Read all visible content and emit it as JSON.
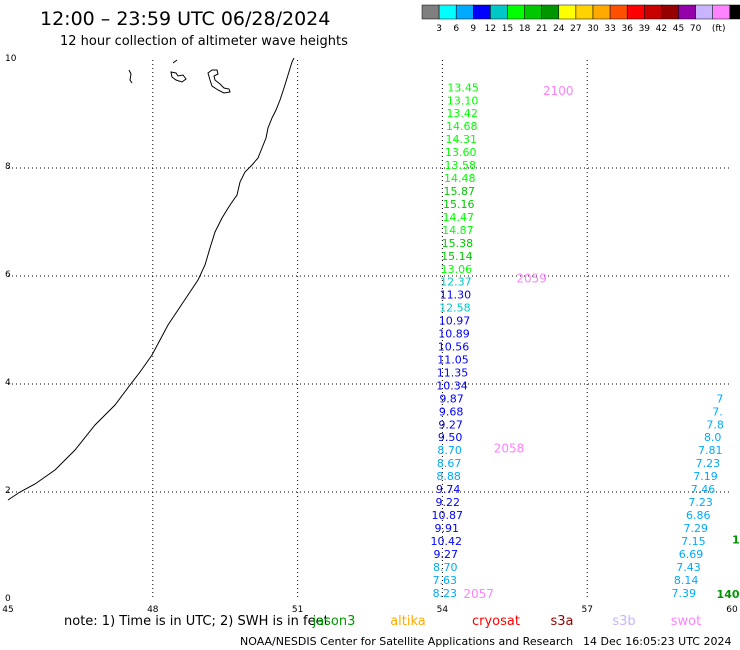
{
  "header": {
    "title": "12:00 – 23:59 UTC 06/28/2024",
    "subtitle": "12 hour collection of altimeter wave heights"
  },
  "colorbar": {
    "colors": [
      "#7f7f7f",
      "#00ffff",
      "#00aaff",
      "#0000ff",
      "#00c8c8",
      "#00ff00",
      "#00c800",
      "#009600",
      "#ffff00",
      "#ffd200",
      "#ffaa00",
      "#ff5000",
      "#ff0000",
      "#c80000",
      "#960000",
      "#9600aa",
      "#c8b4ff",
      "#ff82ff",
      "#000000"
    ],
    "labels": [
      "3",
      "6",
      "9",
      "12",
      "15",
      "18",
      "21",
      "24",
      "27",
      "30",
      "33",
      "36",
      "39",
      "42",
      "45",
      "70"
    ],
    "unit": "(ft)"
  },
  "chart_data": {
    "type": "scatter",
    "title": "12:00 – 23:59 UTC 06/28/2024",
    "subtitle": "12 hour collection of altimeter wave heights",
    "x_range": [
      45,
      60
    ],
    "y_range": [
      0,
      10
    ],
    "x_ticks": [
      "45",
      "48",
      "51",
      "54",
      "57",
      "60"
    ],
    "y_ticks": [
      "0",
      "2",
      "4",
      "6",
      "8",
      "10"
    ],
    "grid": true,
    "unit": "ft",
    "track_main": [
      {
        "x": 54.05,
        "y": 0.06,
        "v": "8.23",
        "c": "#00aaff"
      },
      {
        "x": 54.05,
        "y": 0.3,
        "v": "7.63",
        "c": "#00aaff"
      },
      {
        "x": 54.06,
        "y": 0.54,
        "v": "8.70",
        "c": "#00aaff"
      },
      {
        "x": 54.07,
        "y": 0.78,
        "v": "9.27",
        "c": "#0000ff"
      },
      {
        "x": 54.08,
        "y": 1.02,
        "v": "10.42",
        "c": "#0000ff"
      },
      {
        "x": 54.09,
        "y": 1.26,
        "v": "9.91",
        "c": "#0000ff"
      },
      {
        "x": 54.1,
        "y": 1.5,
        "v": "10.87",
        "c": "#0000ff"
      },
      {
        "x": 54.11,
        "y": 1.74,
        "v": "9.22",
        "c": "#0000ff"
      },
      {
        "x": 54.12,
        "y": 1.98,
        "v": "9.74",
        "c": "#0000ff"
      },
      {
        "x": 54.13,
        "y": 2.22,
        "v": "8.88",
        "c": "#00aaff"
      },
      {
        "x": 54.14,
        "y": 2.46,
        "v": "8.67",
        "c": "#00aaff"
      },
      {
        "x": 54.15,
        "y": 2.7,
        "v": "8.70",
        "c": "#00aaff"
      },
      {
        "x": 54.16,
        "y": 2.94,
        "v": "9.50",
        "c": "#0000ff"
      },
      {
        "x": 54.17,
        "y": 3.18,
        "v": "9.27",
        "c": "#0000ff"
      },
      {
        "x": 54.18,
        "y": 3.42,
        "v": "9.68",
        "c": "#0000ff"
      },
      {
        "x": 54.19,
        "y": 3.66,
        "v": "9.87",
        "c": "#0000ff"
      },
      {
        "x": 54.2,
        "y": 3.9,
        "v": "10.34",
        "c": "#0000ff"
      },
      {
        "x": 54.21,
        "y": 4.14,
        "v": "11.35",
        "c": "#0000ff"
      },
      {
        "x": 54.22,
        "y": 4.38,
        "v": "11.05",
        "c": "#0000ff"
      },
      {
        "x": 54.23,
        "y": 4.62,
        "v": "10.56",
        "c": "#0000ff"
      },
      {
        "x": 54.24,
        "y": 4.86,
        "v": "10.89",
        "c": "#0000ff"
      },
      {
        "x": 54.25,
        "y": 5.1,
        "v": "10.97",
        "c": "#0000ff"
      },
      {
        "x": 54.26,
        "y": 5.34,
        "v": "12.58",
        "c": "#00c8c8"
      },
      {
        "x": 54.27,
        "y": 5.58,
        "v": "11.30",
        "c": "#0000ff"
      },
      {
        "x": 54.28,
        "y": 5.82,
        "v": "12.37",
        "c": "#00c8c8"
      },
      {
        "x": 54.29,
        "y": 6.06,
        "v": "13.06",
        "c": "#00ff00"
      },
      {
        "x": 54.3,
        "y": 6.3,
        "v": "15.14",
        "c": "#00c800"
      },
      {
        "x": 54.31,
        "y": 6.54,
        "v": "15.38",
        "c": "#00c800"
      },
      {
        "x": 54.32,
        "y": 6.78,
        "v": "14.87",
        "c": "#00ff00"
      },
      {
        "x": 54.33,
        "y": 7.02,
        "v": "14.47",
        "c": "#00ff00"
      },
      {
        "x": 54.34,
        "y": 7.26,
        "v": "15.16",
        "c": "#00c800"
      },
      {
        "x": 54.35,
        "y": 7.5,
        "v": "15.87",
        "c": "#00c800"
      },
      {
        "x": 54.36,
        "y": 7.74,
        "v": "14.48",
        "c": "#00ff00"
      },
      {
        "x": 54.37,
        "y": 7.98,
        "v": "13.58",
        "c": "#00ff00"
      },
      {
        "x": 54.38,
        "y": 8.22,
        "v": "13.60",
        "c": "#00ff00"
      },
      {
        "x": 54.39,
        "y": 8.46,
        "v": "14.31",
        "c": "#00ff00"
      },
      {
        "x": 54.4,
        "y": 8.7,
        "v": "14.68",
        "c": "#00ff00"
      },
      {
        "x": 54.41,
        "y": 8.94,
        "v": "13.42",
        "c": "#00ff00"
      },
      {
        "x": 54.42,
        "y": 9.18,
        "v": "13.10",
        "c": "#00ff00"
      },
      {
        "x": 54.43,
        "y": 9.42,
        "v": "13.45",
        "c": "#00ff00"
      }
    ],
    "track_right": [
      {
        "x": 59.0,
        "y": 0.06,
        "v": "7.39",
        "c": "#00aaff"
      },
      {
        "x": 59.05,
        "y": 0.3,
        "v": "8.14",
        "c": "#00aaff"
      },
      {
        "x": 59.1,
        "y": 0.54,
        "v": "7.43",
        "c": "#00aaff"
      },
      {
        "x": 59.15,
        "y": 0.78,
        "v": "6.69",
        "c": "#00aaff"
      },
      {
        "x": 59.2,
        "y": 1.02,
        "v": "7.15",
        "c": "#00aaff"
      },
      {
        "x": 59.25,
        "y": 1.26,
        "v": "7.29",
        "c": "#00aaff"
      },
      {
        "x": 59.3,
        "y": 1.5,
        "v": "6.86",
        "c": "#00aaff"
      },
      {
        "x": 59.35,
        "y": 1.74,
        "v": "7.23",
        "c": "#00aaff"
      },
      {
        "x": 59.4,
        "y": 1.98,
        "v": "7.46",
        "c": "#00aaff"
      },
      {
        "x": 59.45,
        "y": 2.22,
        "v": "7.19",
        "c": "#00aaff"
      },
      {
        "x": 59.5,
        "y": 2.46,
        "v": "7.23",
        "c": "#00aaff"
      },
      {
        "x": 59.55,
        "y": 2.7,
        "v": "7.81",
        "c": "#00aaff"
      },
      {
        "x": 59.6,
        "y": 2.94,
        "v": "8.0",
        "c": "#00aaff"
      },
      {
        "x": 59.65,
        "y": 3.18,
        "v": "7.8",
        "c": "#00aaff"
      },
      {
        "x": 59.7,
        "y": 3.42,
        "v": "7.",
        "c": "#00aaff"
      },
      {
        "x": 59.75,
        "y": 3.66,
        "v": "7",
        "c": "#00aaff"
      }
    ],
    "time_labels": [
      {
        "x": 54.75,
        "y": 0.04,
        "t": "2057"
      },
      {
        "x": 55.38,
        "y": 2.73,
        "t": "2058"
      },
      {
        "x": 55.85,
        "y": 5.88,
        "t": "2059"
      },
      {
        "x": 56.4,
        "y": 9.35,
        "t": "2100"
      }
    ],
    "edge_labels": [
      {
        "x": 59.68,
        "y": 0.04,
        "t": "140",
        "c": "#009600"
      },
      {
        "x": 60.0,
        "y": 1.05,
        "t": "1",
        "c": "#009600"
      }
    ]
  },
  "note": {
    "text": "note: 1) Time is in UTC; 2) SWH is in feet"
  },
  "missions": [
    {
      "name": "jason3",
      "color": "#009600"
    },
    {
      "name": "altika",
      "color": "#ffaa00"
    },
    {
      "name": "cryosat",
      "color": "#ff0000"
    },
    {
      "name": "s3a",
      "color": "#960000"
    },
    {
      "name": "s3b",
      "color": "#c8b4ff"
    },
    {
      "name": "swot",
      "color": "#ff82ff"
    }
  ],
  "footer": {
    "left": "NOAA/NESDIS Center for Satellite Applications and Research",
    "right": "14 Dec 16:05:23 UTC 2024"
  }
}
